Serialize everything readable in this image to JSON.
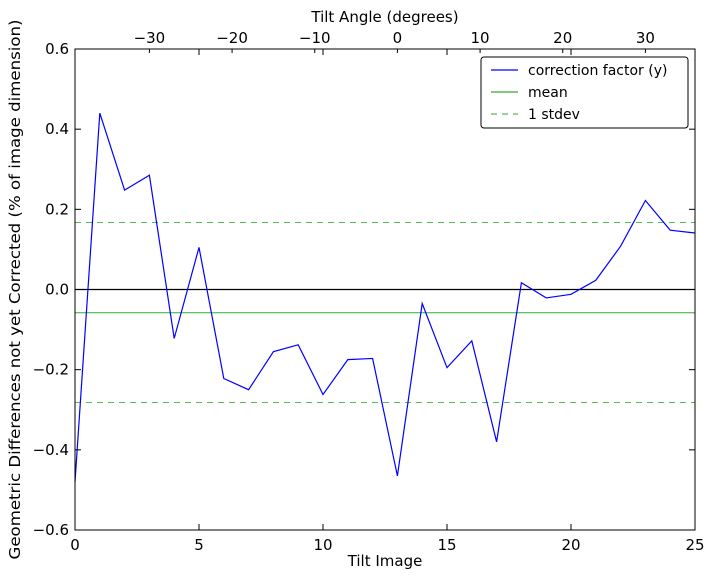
{
  "chart_data": {
    "type": "line",
    "xlabel": "Tilt Image",
    "ylabel": "Geometric Differences not yet Corrected (% of image dimension)",
    "top_xlabel": "Tilt Angle (degrees)",
    "xlim": [
      0,
      25
    ],
    "ylim": [
      -0.6,
      0.6
    ],
    "top_xlim": [
      -39,
      36
    ],
    "x_ticks": [
      0,
      5,
      10,
      15,
      20,
      25
    ],
    "x_tick_labels": [
      "0",
      "5",
      "10",
      "15",
      "20",
      "25"
    ],
    "y_ticks": [
      -0.6,
      -0.4,
      -0.2,
      0.0,
      0.2,
      0.4,
      0.6
    ],
    "y_tick_labels": [
      "−0.6",
      "−0.4",
      "−0.2",
      "0.0",
      "0.2",
      "0.4",
      "0.6"
    ],
    "top_ticks": [
      -30,
      -20,
      -10,
      0,
      10,
      20,
      30
    ],
    "top_tick_labels": [
      "−30",
      "−20",
      "−10",
      "0",
      "10",
      "20",
      "30"
    ],
    "legend_position": "top-right",
    "series": [
      {
        "name": "correction factor (y)",
        "color": "#0000ff",
        "style": "solid",
        "x": [
          0,
          1,
          2,
          3,
          4,
          5,
          6,
          7,
          8,
          9,
          10,
          11,
          12,
          13,
          14,
          15,
          16,
          17,
          18,
          19,
          20,
          21,
          22,
          23,
          24,
          25
        ],
        "values": [
          -0.48,
          0.44,
          0.248,
          0.285,
          -0.122,
          0.105,
          -0.222,
          -0.25,
          -0.155,
          -0.138,
          -0.262,
          -0.175,
          -0.172,
          -0.465,
          -0.035,
          -0.195,
          -0.128,
          -0.38,
          0.017,
          -0.021,
          -0.012,
          0.023,
          0.108,
          0.222,
          0.148,
          0.141
        ]
      },
      {
        "name": "mean",
        "color": "#33aa33",
        "style": "solid",
        "hline": -0.058
      },
      {
        "name": "1 stdev",
        "color": "#55bb55",
        "style": "dashed",
        "hlines": [
          0.167,
          -0.282
        ]
      }
    ],
    "zero_line": {
      "value": 0.0,
      "color": "#000000"
    }
  }
}
